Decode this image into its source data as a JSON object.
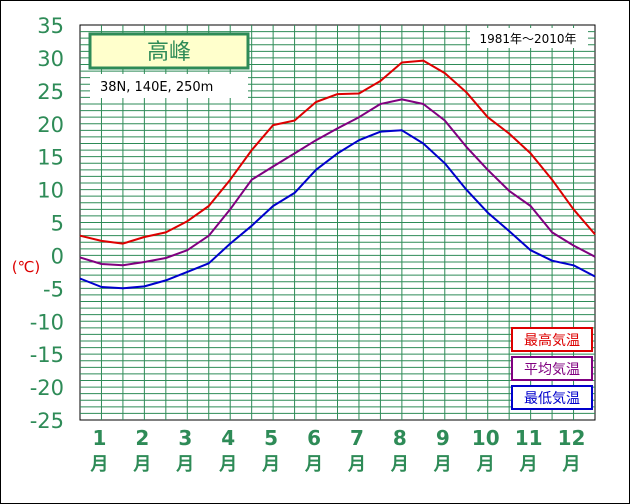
{
  "chart_data": {
    "type": "line",
    "title": "高峰",
    "subtitle": "38N, 140E, 250m",
    "period": "1981年～2010年",
    "ylabel": "(℃)",
    "ylim": [
      -25,
      35
    ],
    "ytick_labels": [
      "35",
      "30",
      "25",
      "20",
      "15",
      "10",
      "5",
      "0",
      "-5",
      "-10",
      "-15",
      "-20",
      "-25"
    ],
    "ytick_values": [
      35,
      30,
      25,
      20,
      15,
      10,
      5,
      0,
      -5,
      -10,
      -15,
      -20,
      -25
    ],
    "month_numbers": [
      "1",
      "2",
      "3",
      "4",
      "5",
      "6",
      "7",
      "8",
      "9",
      "10",
      "11",
      "12"
    ],
    "month_suffix": "月",
    "grid": true,
    "legend_placement": "bottom-right",
    "x": [
      0,
      0.5,
      1,
      1.5,
      2,
      2.5,
      3,
      3.5,
      4,
      4.5,
      5,
      5.5,
      6,
      6.5,
      7,
      7.5,
      8,
      8.5,
      9,
      9.5,
      10,
      10.5,
      11,
      11.5,
      12
    ],
    "series": [
      {
        "name": "最高気温",
        "color": "#dd0000",
        "values": [
          3.0,
          2.2,
          1.8,
          2.8,
          3.5,
          5.2,
          7.5,
          11.5,
          16.0,
          19.8,
          20.5,
          23.3,
          24.5,
          24.6,
          26.5,
          29.3,
          29.6,
          27.7,
          24.8,
          21.0,
          18.5,
          15.5,
          11.5,
          7.0,
          3.2
        ]
      },
      {
        "name": "平均気温",
        "color": "#800080",
        "values": [
          -0.3,
          -1.3,
          -1.5,
          -1.0,
          -0.4,
          0.8,
          3.0,
          7.0,
          11.5,
          13.5,
          15.5,
          17.5,
          19.3,
          21.0,
          23.0,
          23.7,
          23.0,
          20.5,
          16.5,
          13.0,
          9.8,
          7.5,
          3.5,
          1.5,
          -0.2
        ]
      },
      {
        "name": "最低気温",
        "color": "#0000cc",
        "values": [
          -3.5,
          -4.8,
          -5.0,
          -4.7,
          -3.8,
          -2.5,
          -1.2,
          1.8,
          4.5,
          7.5,
          9.5,
          13.0,
          15.5,
          17.5,
          18.8,
          19.0,
          17.0,
          14.0,
          10.0,
          6.5,
          3.7,
          0.8,
          -0.8,
          -1.5,
          -3.2
        ]
      }
    ]
  }
}
